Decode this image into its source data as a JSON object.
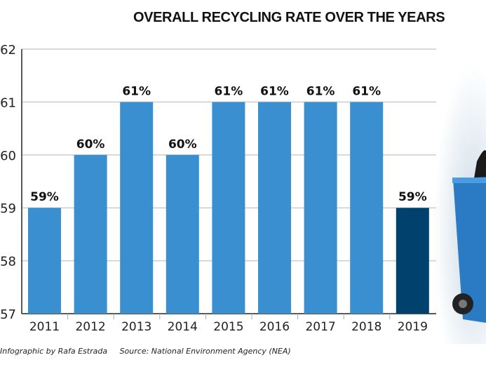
{
  "chart_data": {
    "type": "bar",
    "title": "OVERALL RECYCLING RATE OVER THE YEARS",
    "categories": [
      "2011",
      "2012",
      "2013",
      "2014",
      "2015",
      "2016",
      "2017",
      "2018",
      "2019"
    ],
    "values": [
      59,
      60,
      61,
      60,
      61,
      61,
      61,
      61,
      59
    ],
    "data_labels": [
      "59%",
      "60%",
      "61%",
      "60%",
      "61%",
      "61%",
      "61%",
      "61%",
      "59%"
    ],
    "ylim": [
      57,
      62
    ],
    "yticks": [
      "57",
      "58",
      "59",
      "60",
      "61",
      "62"
    ],
    "grid": true,
    "colors": {
      "bar": "#3a8fd0",
      "highlight": "#00416e"
    },
    "highlight_index": 8
  },
  "credit": "Infographic by Rafa Estrada",
  "source": "Source: National Environment Agency (NEA)"
}
